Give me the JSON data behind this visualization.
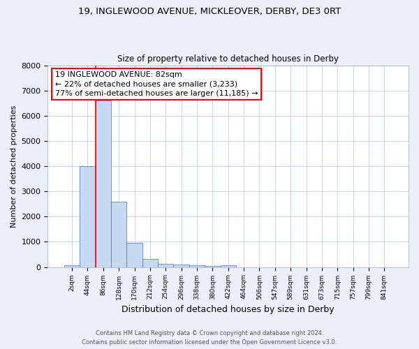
{
  "title1": "19, INGLEWOOD AVENUE, MICKLEOVER, DERBY, DE3 0RT",
  "title2": "Size of property relative to detached houses in Derby",
  "xlabel": "Distribution of detached houses by size in Derby",
  "ylabel": "Number of detached properties",
  "footnote1": "Contains HM Land Registry data © Crown copyright and database right 2024.",
  "footnote2": "Contains public sector information licensed under the Open Government Licence v3.0.",
  "bin_labels": [
    "2sqm",
    "44sqm",
    "86sqm",
    "128sqm",
    "170sqm",
    "212sqm",
    "254sqm",
    "296sqm",
    "338sqm",
    "380sqm",
    "422sqm",
    "464sqm",
    "506sqm",
    "547sqm",
    "589sqm",
    "631sqm",
    "673sqm",
    "715sqm",
    "757sqm",
    "799sqm",
    "841sqm"
  ],
  "bin_values": [
    80,
    4000,
    6600,
    2600,
    970,
    320,
    120,
    110,
    60,
    30,
    60,
    0,
    0,
    0,
    0,
    0,
    0,
    0,
    0,
    0,
    0
  ],
  "bar_color": "#c6d9f0",
  "bar_edge_color": "#4472c4",
  "property_sqm": 82,
  "annotation_text": "19 INGLEWOOD AVENUE: 82sqm\n← 22% of detached houses are smaller (3,233)\n77% of semi-detached houses are larger (11,185) →",
  "ylim": [
    0,
    8000
  ],
  "yticks": [
    0,
    1000,
    2000,
    3000,
    4000,
    5000,
    6000,
    7000,
    8000
  ],
  "bg_color": "#eaf0f8",
  "plot_bg_color": "#ffffff",
  "grid_color": "#c8d4e8"
}
